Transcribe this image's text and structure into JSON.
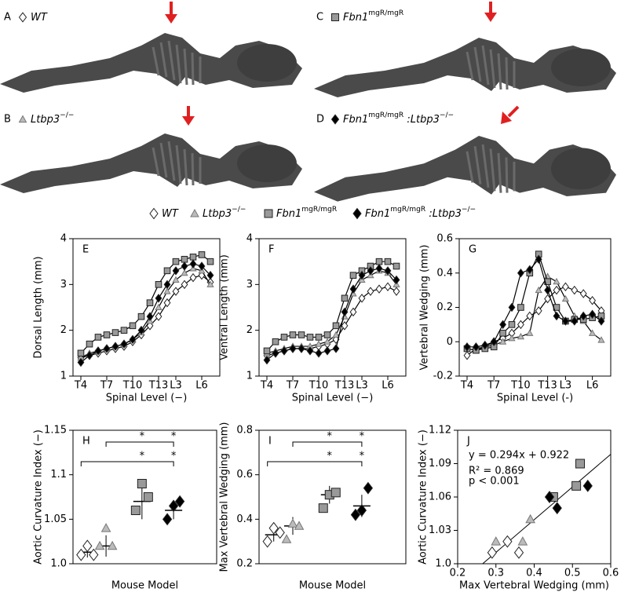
{
  "panels": [
    {
      "letter": "A",
      "marker": "diamond",
      "color": "#ffffff",
      "label": [
        {
          "text": "WT"
        }
      ]
    },
    {
      "letter": "B",
      "marker": "triangle",
      "color": "#bbbbbb",
      "label": [
        {
          "text": "Ltbp3"
        },
        {
          "text": "−/−",
          "sup": true
        }
      ]
    },
    {
      "letter": "C",
      "marker": "square",
      "color": "#999999",
      "label": [
        {
          "text": "Fbn1"
        },
        {
          "text": "mgR/mgR",
          "sup": true
        }
      ]
    },
    {
      "letter": "D",
      "marker": "diamond",
      "color": "#000000",
      "label": [
        {
          "text": "Fbn1"
        },
        {
          "text": "mgR/mgR",
          "sup": true
        },
        {
          "text": " :Ltbp3"
        },
        {
          "text": "−/−",
          "sup": true
        }
      ]
    }
  ],
  "legend": [
    {
      "marker": "diamond",
      "color": "#ffffff",
      "label": [
        {
          "text": "WT"
        }
      ]
    },
    {
      "marker": "triangle",
      "color": "#bbbbbb",
      "label": [
        {
          "text": "Ltbp3"
        },
        {
          "text": "−/−",
          "sup": true
        }
      ]
    },
    {
      "marker": "square",
      "color": "#999999",
      "label": [
        {
          "text": "Fbn1"
        },
        {
          "text": "mgR/mgR",
          "sup": true
        }
      ]
    },
    {
      "marker": "diamond",
      "color": "#000000",
      "label": [
        {
          "text": "Fbn1"
        },
        {
          "text": "mgR/mgR",
          "sup": true
        },
        {
          "text": " :Ltbp3"
        },
        {
          "text": "−/−",
          "sup": true
        }
      ]
    }
  ],
  "chart_data": [
    {
      "type": "line",
      "panel": "E",
      "ylabel": "Dorsal Length (mm)",
      "xlabel": "Spinal Level (−)",
      "categories": [
        "T4",
        null,
        null,
        "T7",
        null,
        null,
        "T10",
        null,
        null,
        "T13",
        null,
        "L3",
        null,
        null,
        "L6",
        null
      ],
      "ylim": [
        1,
        4
      ],
      "yticks": [
        1,
        2,
        3,
        4
      ],
      "series": [
        {
          "marker": "diamond",
          "color": "#ffffff",
          "values": [
            1.4,
            1.45,
            1.5,
            1.55,
            1.6,
            1.65,
            1.75,
            1.9,
            2.1,
            2.3,
            2.6,
            2.85,
            3.0,
            3.15,
            3.2,
            3.05
          ]
        },
        {
          "marker": "triangle",
          "color": "#bbbbbb",
          "values": [
            1.4,
            1.5,
            1.55,
            1.6,
            1.65,
            1.7,
            1.8,
            1.95,
            2.2,
            2.5,
            2.85,
            3.1,
            3.25,
            3.35,
            3.3,
            3.0
          ]
        },
        {
          "marker": "square",
          "color": "#999999",
          "values": [
            1.5,
            1.7,
            1.85,
            1.9,
            1.95,
            2.0,
            2.1,
            2.3,
            2.6,
            3.0,
            3.3,
            3.5,
            3.55,
            3.6,
            3.65,
            3.5
          ]
        },
        {
          "marker": "diamond",
          "color": "#000000",
          "values": [
            1.3,
            1.45,
            1.55,
            1.6,
            1.65,
            1.7,
            1.8,
            2.0,
            2.3,
            2.7,
            3.0,
            3.3,
            3.4,
            3.45,
            3.4,
            3.2
          ]
        }
      ]
    },
    {
      "type": "line",
      "panel": "F",
      "ylabel": "Ventral Length (mm)",
      "xlabel": "Spinal Level (−)",
      "categories": [
        "T4",
        null,
        null,
        "T7",
        null,
        null,
        "T10",
        null,
        null,
        "T13",
        null,
        "L3",
        null,
        null,
        "L6",
        null
      ],
      "ylim": [
        1,
        4
      ],
      "yticks": [
        1,
        2,
        3,
        4
      ],
      "series": [
        {
          "marker": "diamond",
          "color": "#ffffff",
          "values": [
            1.45,
            1.5,
            1.55,
            1.6,
            1.6,
            1.6,
            1.65,
            1.7,
            1.8,
            2.1,
            2.4,
            2.7,
            2.85,
            2.9,
            2.95,
            2.85
          ]
        },
        {
          "marker": "triangle",
          "color": "#bbbbbb",
          "values": [
            1.5,
            1.55,
            1.6,
            1.65,
            1.65,
            1.65,
            1.7,
            1.75,
            1.9,
            2.3,
            2.8,
            3.1,
            3.2,
            3.3,
            3.25,
            3.0
          ]
        },
        {
          "marker": "square",
          "color": "#999999",
          "values": [
            1.55,
            1.75,
            1.85,
            1.9,
            1.9,
            1.85,
            1.85,
            1.9,
            2.1,
            2.7,
            3.2,
            3.3,
            3.4,
            3.5,
            3.5,
            3.4
          ]
        },
        {
          "marker": "diamond",
          "color": "#000000",
          "values": [
            1.35,
            1.5,
            1.55,
            1.6,
            1.6,
            1.55,
            1.5,
            1.55,
            1.6,
            2.4,
            2.9,
            3.2,
            3.3,
            3.35,
            3.3,
            3.1
          ]
        }
      ]
    },
    {
      "type": "line",
      "panel": "G",
      "ylabel": "Vertebral Wedging (mm)",
      "xlabel": "Spinal Level (-)",
      "categories": [
        "T4",
        null,
        null,
        "T7",
        null,
        null,
        "T10",
        null,
        null,
        "T13",
        null,
        "L3",
        null,
        null,
        "L6",
        null
      ],
      "ylim": [
        -0.2,
        0.6
      ],
      "yticks": [
        -0.2,
        0,
        0.2,
        0.4,
        0.6
      ],
      "series": [
        {
          "marker": "diamond",
          "color": "#ffffff",
          "values": [
            -0.08,
            -0.04,
            -0.03,
            0.0,
            0.02,
            0.05,
            0.1,
            0.15,
            0.18,
            0.25,
            0.3,
            0.32,
            0.3,
            0.28,
            0.24,
            0.18
          ]
        },
        {
          "marker": "triangle",
          "color": "#bbbbbb",
          "values": [
            -0.04,
            -0.05,
            -0.03,
            -0.02,
            0.0,
            0.02,
            0.03,
            0.05,
            0.3,
            0.38,
            0.35,
            0.25,
            0.15,
            0.12,
            0.05,
            0.01
          ]
        },
        {
          "marker": "square",
          "color": "#999999",
          "values": [
            -0.04,
            -0.05,
            -0.04,
            -0.03,
            0.05,
            0.1,
            0.2,
            0.4,
            0.51,
            0.35,
            0.2,
            0.12,
            0.13,
            0.13,
            0.14,
            0.15
          ]
        },
        {
          "marker": "diamond",
          "color": "#000000",
          "values": [
            -0.03,
            -0.03,
            -0.02,
            0.0,
            0.1,
            0.2,
            0.4,
            0.42,
            0.48,
            0.3,
            0.15,
            0.12,
            0.12,
            0.15,
            0.16,
            0.12
          ]
        }
      ]
    },
    {
      "type": "dot",
      "panel": "H",
      "ylabel": "Aortic Curvature Index (−)",
      "xlabel": "Mouse Model",
      "ylim": [
        1.0,
        1.15
      ],
      "yticks": [
        {
          "value": 1.0,
          "label": "1.0"
        },
        1.05,
        1.1,
        1.15
      ],
      "series": [
        {
          "marker": "diamond",
          "color": "#ffffff",
          "values": [
            1.01,
            1.02,
            1.01
          ],
          "mean": 1.013,
          "sd": 0.006
        },
        {
          "marker": "triangle",
          "color": "#bbbbbb",
          "values": [
            1.02,
            1.04,
            1.02
          ],
          "mean": 1.02,
          "sd": 0.012
        },
        {
          "marker": "square",
          "color": "#999999",
          "values": [
            1.06,
            1.09,
            1.075
          ],
          "mean": 1.07,
          "sd": 0.02
        },
        {
          "marker": "diamond",
          "color": "#000000",
          "values": [
            1.05,
            1.065,
            1.07
          ],
          "mean": 1.06,
          "sd": 0.01
        }
      ],
      "significance": [
        "*",
        "*",
        "*",
        "*"
      ]
    },
    {
      "type": "dot",
      "panel": "I",
      "ylabel": "Max Vertebral Wedging (mm)",
      "xlabel": "Mouse Model",
      "ylim": [
        0.2,
        0.8
      ],
      "yticks": [
        0.2,
        0.4,
        0.6,
        0.8
      ],
      "series": [
        {
          "marker": "diamond",
          "color": "#ffffff",
          "values": [
            0.3,
            0.36,
            0.34
          ],
          "mean": 0.33,
          "sd": 0.03
        },
        {
          "marker": "triangle",
          "color": "#bbbbbb",
          "values": [
            0.31,
            0.38,
            0.37
          ],
          "mean": 0.37,
          "sd": 0.04
        },
        {
          "marker": "square",
          "color": "#999999",
          "values": [
            0.45,
            0.51,
            0.52
          ],
          "mean": 0.51,
          "sd": 0.04
        },
        {
          "marker": "diamond",
          "color": "#000000",
          "values": [
            0.42,
            0.44,
            0.54
          ],
          "mean": 0.46,
          "sd": 0.05
        }
      ],
      "significance": [
        "*",
        "*",
        "*",
        "*"
      ]
    },
    {
      "type": "scatter",
      "panel": "J",
      "ylabel": "Aortic Curvature Index (−)",
      "xlabel": "Max Vertebral Wedging (mm)",
      "xlim": [
        0.2,
        0.6
      ],
      "xticks": [
        0.2,
        0.3,
        0.4,
        0.5,
        0.6
      ],
      "ylim": [
        1.0,
        1.12
      ],
      "yticks": [
        {
          "value": 1.0,
          "label": "1.0"
        },
        1.03,
        1.06,
        1.09,
        1.12
      ],
      "series": [
        {
          "marker": "diamond",
          "color": "#ffffff",
          "x": [
            0.29,
            0.33,
            0.36
          ],
          "values": [
            1.01,
            1.02,
            1.01
          ]
        },
        {
          "marker": "triangle",
          "color": "#bbbbbb",
          "x": [
            0.3,
            0.37,
            0.39
          ],
          "values": [
            1.02,
            1.02,
            1.04
          ]
        },
        {
          "marker": "square",
          "color": "#999999",
          "x": [
            0.45,
            0.51,
            0.52
          ],
          "values": [
            1.06,
            1.07,
            1.09
          ]
        },
        {
          "marker": "diamond",
          "color": "#000000",
          "x": [
            0.44,
            0.46,
            0.54
          ],
          "values": [
            1.06,
            1.05,
            1.07
          ]
        }
      ],
      "fit": {
        "slope": 0.294,
        "intercept": 0.922
      },
      "annotations": [
        "y = 0.294x + 0.922",
        "R² = 0.869",
        "p < 0.001"
      ]
    }
  ]
}
